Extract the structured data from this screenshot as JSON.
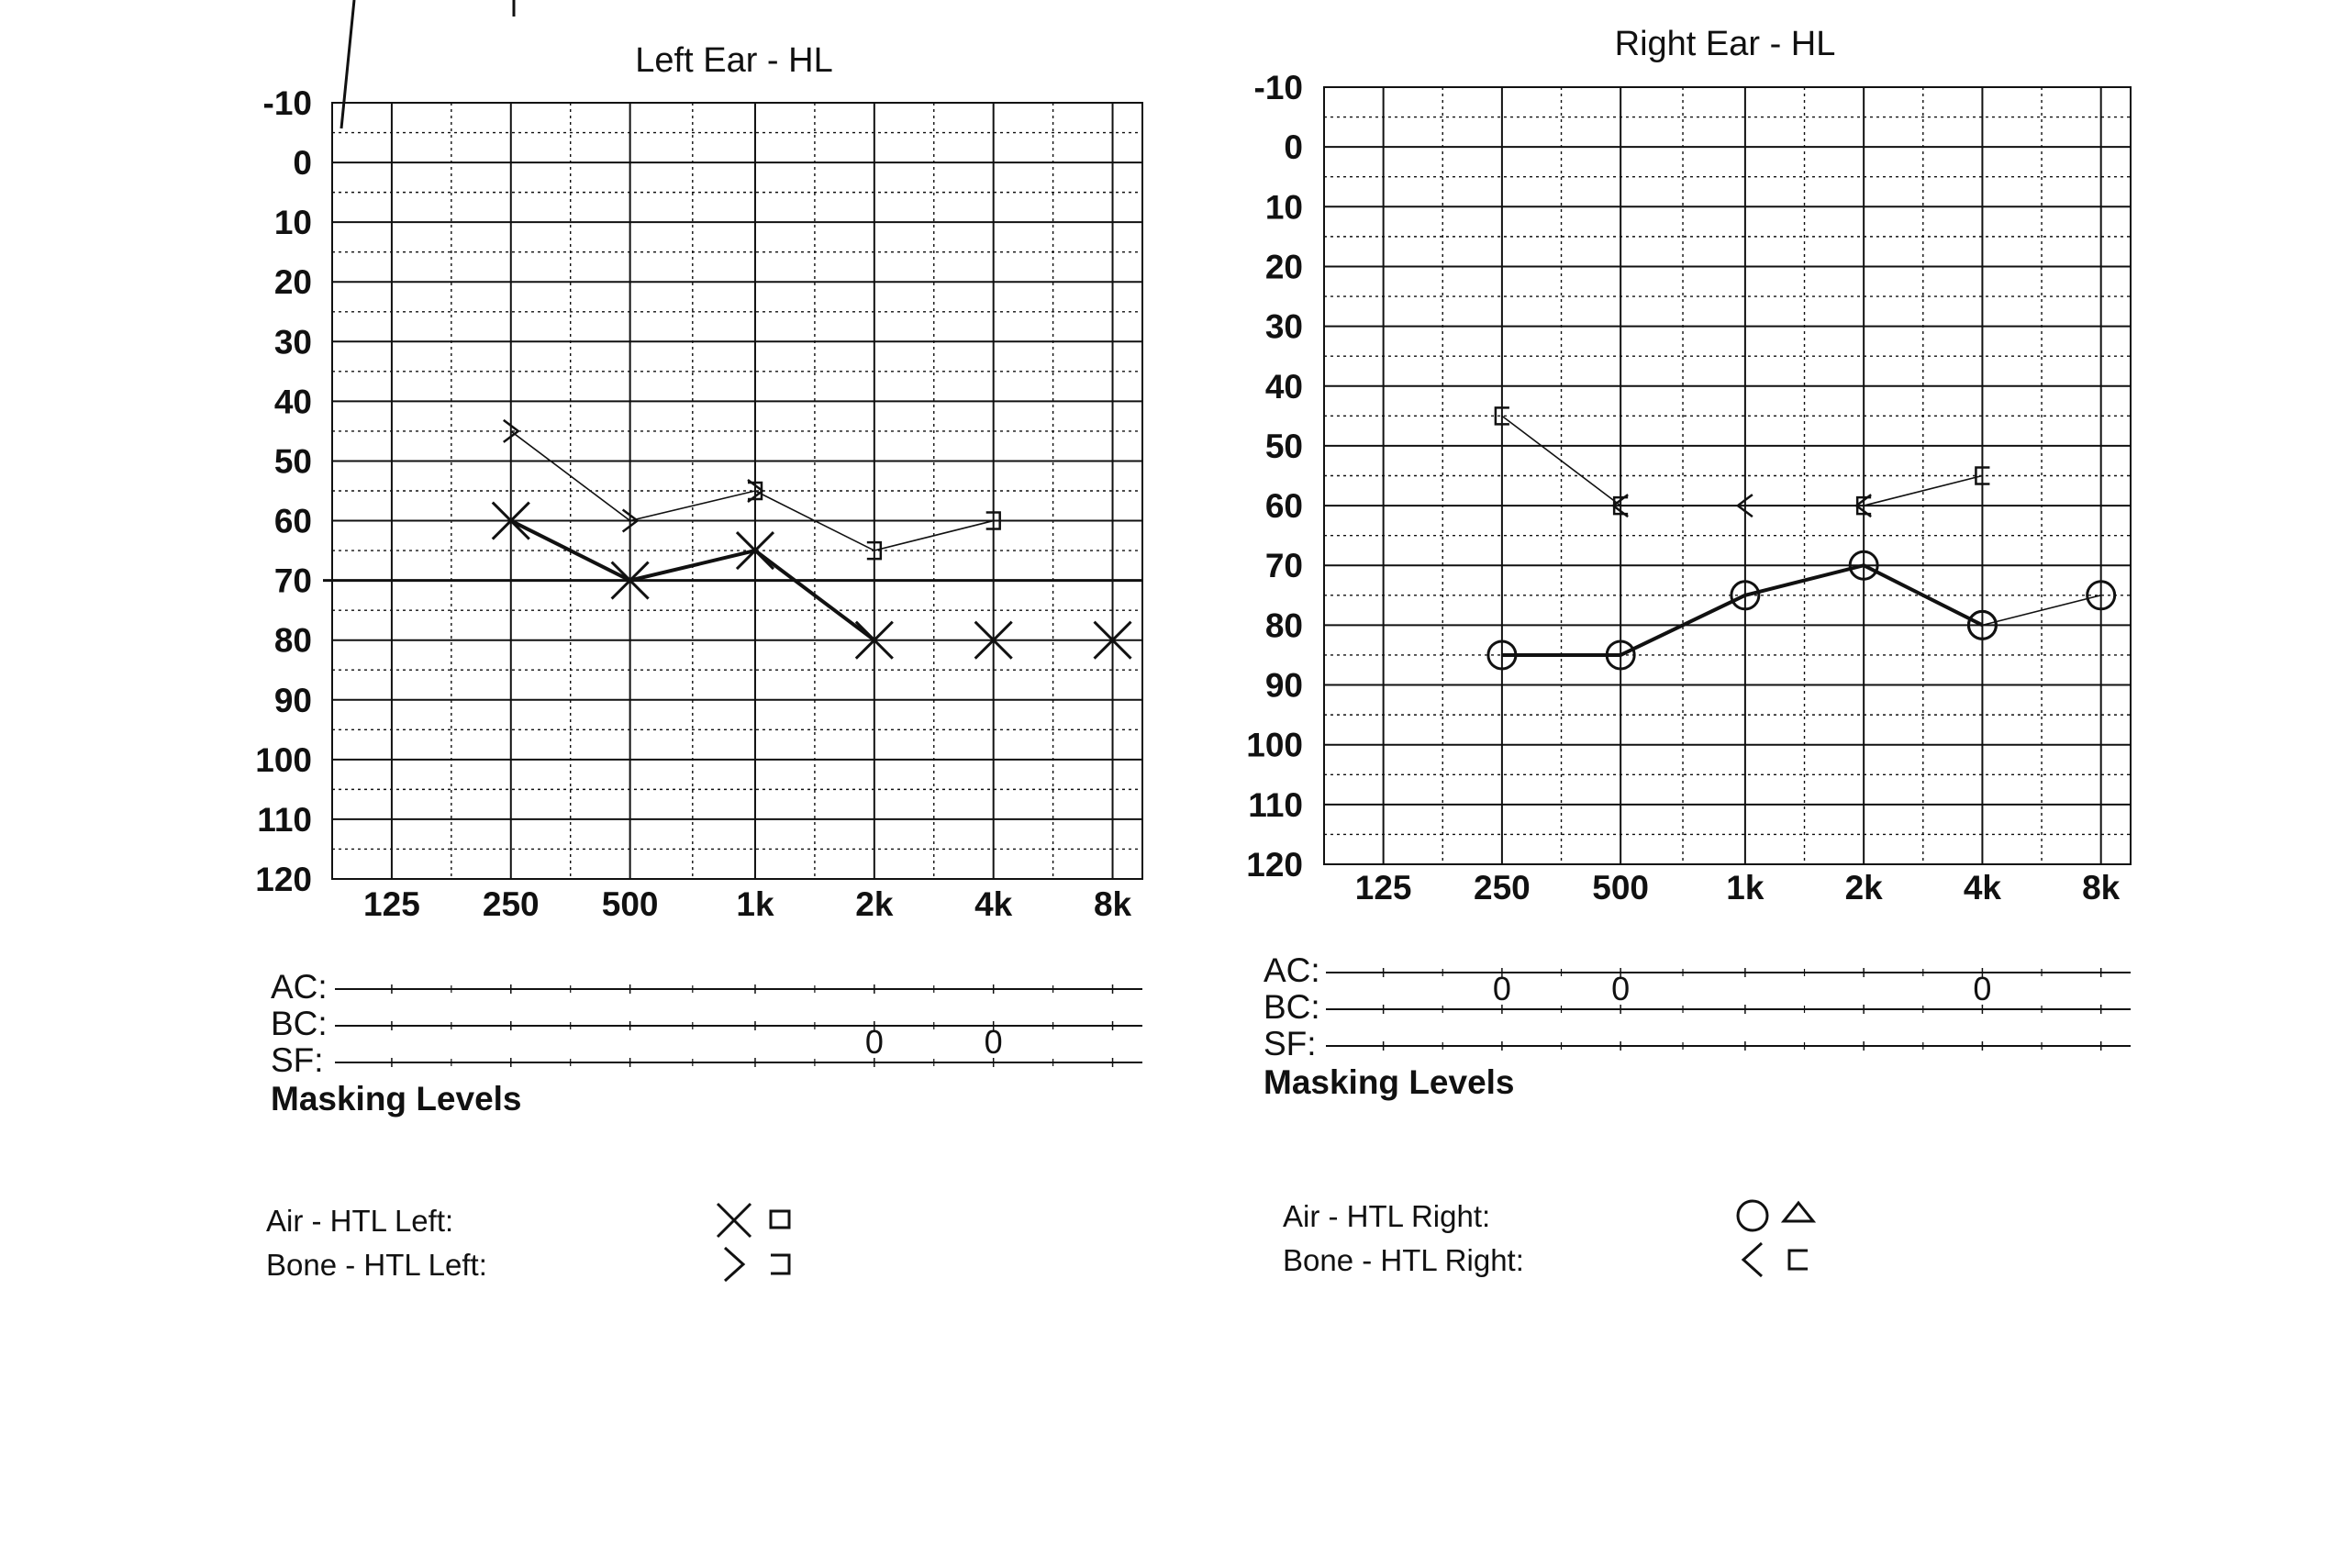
{
  "charts": [
    {
      "title": "Left Ear - HL",
      "y_ticks": [
        "-10",
        "0",
        "10",
        "20",
        "30",
        "40",
        "50",
        "60",
        "70",
        "80",
        "90",
        "100",
        "110",
        "120"
      ],
      "x_ticks": [
        "125",
        "250",
        "500",
        "1k",
        "2k",
        "4k",
        "8k"
      ],
      "masking_rows": [
        "AC:",
        "BC:",
        "SF:"
      ],
      "masking_title": "Masking Levels",
      "legend": [
        {
          "label": "Air - HTL Left:",
          "icon": "x-symbol-icon",
          "masked_icon": "square-icon"
        },
        {
          "label": "Bone - HTL Left:",
          "icon": "right-bracket-chevron-icon",
          "masked_icon": "right-square-bracket-icon"
        }
      ]
    },
    {
      "title": "Right Ear - HL",
      "y_ticks": [
        "-10",
        "0",
        "10",
        "20",
        "30",
        "40",
        "50",
        "60",
        "70",
        "80",
        "90",
        "100",
        "110",
        "120"
      ],
      "x_ticks": [
        "125",
        "250",
        "500",
        "1k",
        "2k",
        "4k",
        "8k"
      ],
      "masking_rows": [
        "AC:",
        "BC:",
        "SF:"
      ],
      "masking_title": "Masking Levels",
      "legend": [
        {
          "label": "Air - HTL Right:",
          "icon": "circle-icon",
          "masked_icon": "triangle-icon"
        },
        {
          "label": "Bone - HTL Right:",
          "icon": "left-chevron-icon",
          "masked_icon": "left-square-bracket-icon"
        }
      ]
    }
  ],
  "chart_data": [
    {
      "type": "line",
      "title": "Left Ear - HL",
      "x": [
        "125",
        "250",
        "500",
        "1k",
        "2k",
        "4k",
        "8k"
      ],
      "ylim": [
        -10,
        120
      ],
      "y_inverted": true,
      "grid": true,
      "series": [
        {
          "marker": "x",
          "line": "bold",
          "points": [
            [
              "250",
              60
            ],
            [
              "500",
              70
            ],
            [
              "1k",
              65
            ],
            [
              "2k",
              80
            ]
          ]
        },
        {
          "marker": "x",
          "line": "none",
          "points": [
            [
              "4k",
              80
            ],
            [
              "8k",
              80
            ]
          ]
        },
        {
          "marker": "bone-left",
          "line": "thin",
          "points": [
            [
              "250",
              45
            ],
            [
              "500",
              60
            ],
            [
              "1k",
              55
            ]
          ]
        },
        {
          "marker": "bone-left-masked",
          "line": "thin",
          "points": [
            [
              "1k",
              55
            ],
            [
              "2k",
              65
            ],
            [
              "4k",
              60
            ]
          ]
        }
      ],
      "masking": {
        "BC": [
          [
            "2k",
            "0"
          ],
          [
            "4k",
            "0"
          ]
        ]
      }
    },
    {
      "type": "line",
      "title": "Right Ear - HL",
      "x": [
        "125",
        "250",
        "500",
        "1k",
        "2k",
        "4k",
        "8k"
      ],
      "ylim": [
        -10,
        120
      ],
      "y_inverted": true,
      "grid": true,
      "series": [
        {
          "marker": "circle",
          "line": "bold",
          "points": [
            [
              "250",
              85
            ],
            [
              "500",
              85
            ],
            [
              "1k",
              75
            ],
            [
              "2k",
              70
            ],
            [
              "4k",
              80
            ]
          ]
        },
        {
          "marker": "circle",
          "line": "thin",
          "points": [
            [
              "4k",
              80
            ],
            [
              "8k",
              75
            ]
          ]
        },
        {
          "marker": "bone-right-masked",
          "line": "thin",
          "points": [
            [
              "250",
              45
            ],
            [
              "500",
              60
            ]
          ]
        },
        {
          "marker": "bone-right",
          "line": "thin",
          "points": [
            [
              "500",
              60
            ],
            [
              "1k",
              60
            ],
            [
              "2k",
              60
            ]
          ]
        },
        {
          "marker": "bone-right-masked",
          "line": "thin",
          "points": [
            [
              "2k",
              60
            ],
            [
              "4k",
              55
            ]
          ]
        }
      ],
      "masking": {
        "AC": [
          [
            "250",
            "0"
          ],
          [
            "500",
            "0"
          ],
          [
            "4k",
            "0"
          ]
        ]
      }
    }
  ],
  "colors": {
    "ink": "#111111",
    "paper": "#ffffff"
  }
}
